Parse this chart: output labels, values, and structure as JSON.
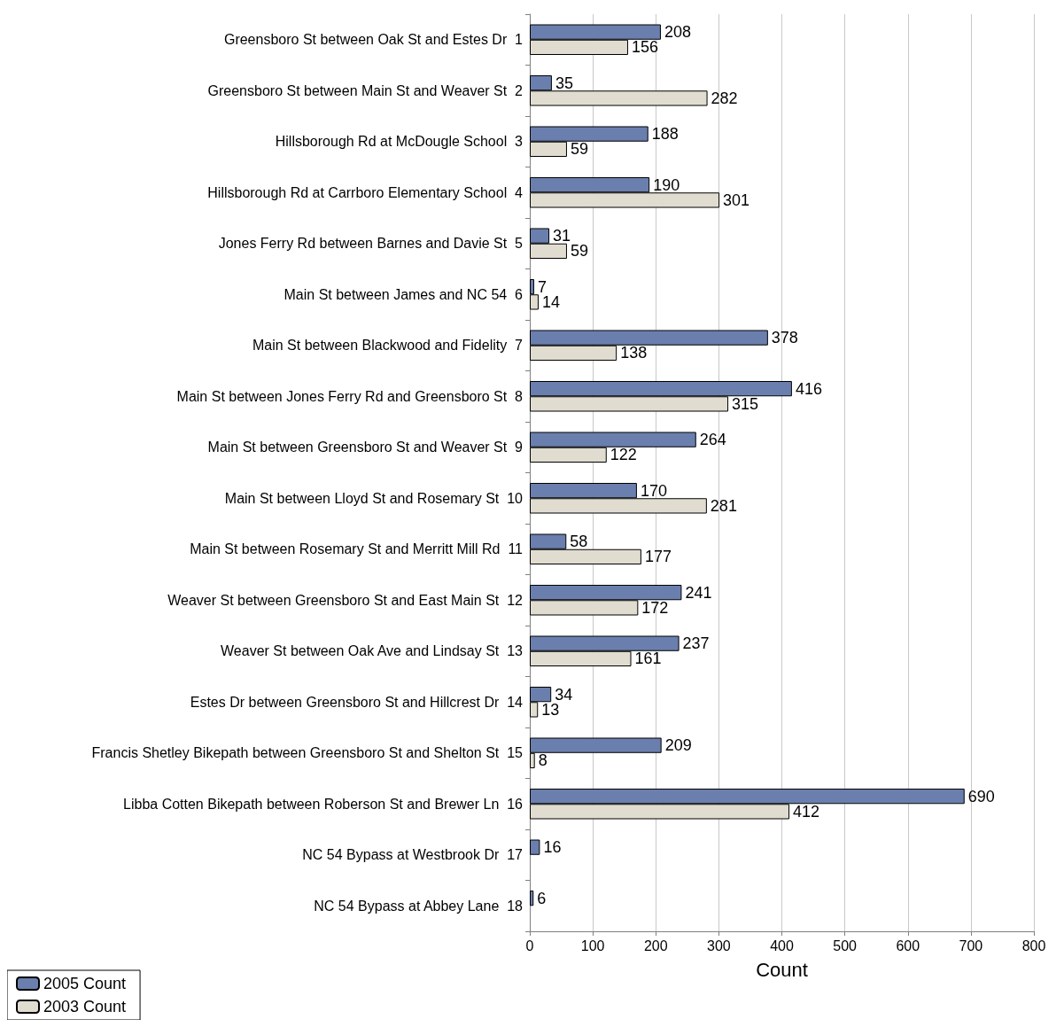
{
  "chart_data": {
    "type": "bar",
    "orientation": "horizontal",
    "xlabel": "Count",
    "categories": [
      "Greensboro St between Oak St and Estes Dr  1",
      "Greensboro St between Main St and Weaver St  2",
      "Hillsborough Rd at McDougle School  3",
      "Hillsborough Rd at Carrboro Elementary School  4",
      "Jones Ferry Rd between Barnes and Davie St  5",
      "Main St between James and NC 54  6",
      "Main St between Blackwood and Fidelity  7",
      "Main St between Jones Ferry Rd and Greensboro St  8",
      "Main St between Greensboro St and Weaver St  9",
      "Main St between Lloyd St and Rosemary St  10",
      "Main St between Rosemary St and Merritt Mill Rd  11",
      "Weaver St between Greensboro St and East Main St  12",
      "Weaver St between Oak Ave and Lindsay St  13",
      "Estes Dr between Greensboro St and Hillcrest Dr  14",
      "Francis Shetley Bikepath between Greensboro St and Shelton St  15",
      "Libba Cotten Bikepath between Roberson St and Brewer Ln  16",
      "NC 54 Bypass at Westbrook Dr  17",
      "NC 54 Bypass at Abbey Lane  18"
    ],
    "series": [
      {
        "name": "2005 Count",
        "color": "#6a7fad",
        "values": [
          208,
          35,
          188,
          190,
          31,
          7,
          378,
          416,
          264,
          170,
          58,
          241,
          237,
          34,
          209,
          690,
          16,
          6
        ]
      },
      {
        "name": "2003 Count",
        "color": "#e0dccf",
        "values": [
          156,
          282,
          59,
          301,
          59,
          14,
          138,
          315,
          122,
          281,
          177,
          172,
          161,
          13,
          8,
          412,
          null,
          null
        ]
      }
    ],
    "xlim": [
      0,
      800
    ],
    "xticks": [
      0,
      100,
      200,
      300,
      400,
      500,
      600,
      700,
      800
    ],
    "grid": "x",
    "legend": "bottom left",
    "data_labels": true
  }
}
